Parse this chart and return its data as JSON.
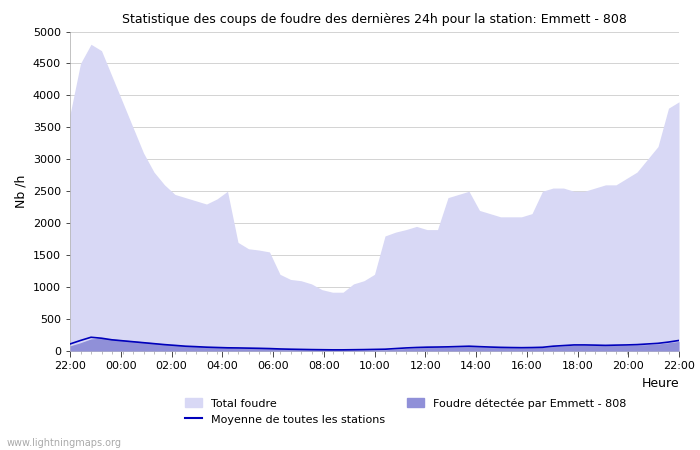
{
  "title": "Statistique des coups de foudre des dernières 24h pour la station: Emmett - 808",
  "xlabel": "Heure",
  "ylabel": "Nb /h",
  "watermark": "www.lightningmaps.org",
  "ylim": [
    0,
    5000
  ],
  "yticks": [
    0,
    500,
    1000,
    1500,
    2000,
    2500,
    3000,
    3500,
    4000,
    4500,
    5000
  ],
  "xtick_labels": [
    "22:00",
    "00:00",
    "02:00",
    "04:00",
    "06:00",
    "08:00",
    "10:00",
    "12:00",
    "14:00",
    "16:00",
    "18:00",
    "20:00",
    "22:00"
  ],
  "color_total": "#d8d8f5",
  "color_station": "#9090d8",
  "color_mean": "#0000bb",
  "background": "#ffffff",
  "legend_total_color": "#d8d8f5",
  "legend_station_color": "#9090d8",
  "total_foudre": [
    3700,
    4500,
    4800,
    4700,
    4300,
    3900,
    3500,
    3100,
    2800,
    2600,
    2450,
    2400,
    2350,
    2300,
    2380,
    2500,
    1700,
    1600,
    1580,
    1550,
    1200,
    1120,
    1100,
    1050,
    960,
    920,
    920,
    1050,
    1100,
    1200,
    1800,
    1860,
    1900,
    1950,
    1900,
    1900,
    2400,
    2450,
    2500,
    2200,
    2150,
    2100,
    2100,
    2100,
    2150,
    2500,
    2550,
    2550,
    2500,
    2500,
    2550,
    2600,
    2600,
    2700,
    2800,
    3000,
    3200,
    3800,
    3900
  ],
  "station_foudre": [
    80,
    130,
    190,
    200,
    190,
    175,
    160,
    145,
    130,
    110,
    95,
    85,
    75,
    65,
    60,
    55,
    50,
    47,
    45,
    42,
    38,
    35,
    32,
    30,
    28,
    25,
    22,
    20,
    18,
    18,
    20,
    30,
    40,
    50,
    55,
    58,
    60,
    65,
    70,
    65,
    60,
    55,
    52,
    50,
    52,
    55,
    70,
    80,
    90,
    90,
    88,
    85,
    88,
    90,
    95,
    100,
    110,
    130,
    150
  ],
  "mean_foudre": [
    110,
    165,
    215,
    200,
    175,
    160,
    145,
    130,
    115,
    100,
    88,
    75,
    68,
    60,
    55,
    50,
    48,
    45,
    42,
    38,
    32,
    28,
    25,
    22,
    20,
    18,
    18,
    20,
    22,
    25,
    28,
    38,
    48,
    55,
    60,
    62,
    65,
    70,
    75,
    68,
    62,
    57,
    54,
    52,
    54,
    58,
    75,
    85,
    95,
    95,
    92,
    88,
    92,
    95,
    100,
    110,
    120,
    140,
    165
  ]
}
